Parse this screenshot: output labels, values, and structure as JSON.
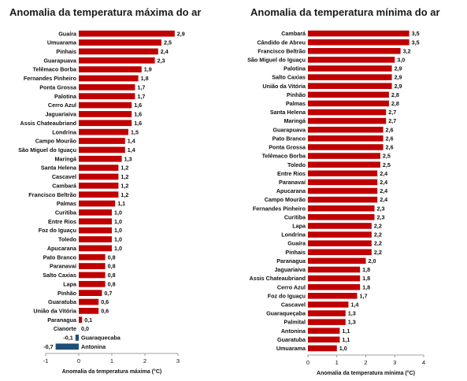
{
  "colors": {
    "positive": "#c00000",
    "negative": "#1f4e79",
    "axis": "#808080"
  },
  "chart_data": [
    {
      "type": "bar",
      "orientation": "horizontal",
      "title": "Anomalia da temperatura máxima do ar",
      "xlabel": "Anomalia da temperatura máxima (°C)",
      "xlim": [
        -1,
        3
      ],
      "xticks": [
        "-1",
        "0",
        "1",
        "2",
        "3"
      ],
      "categories": [
        "Guaíra",
        "Umuarama",
        "Pinhais",
        "Guarapuava",
        "Telêmaco Borba",
        "Fernandes Pinheiro",
        "Ponta Grossa",
        "Palotina",
        "Cerro  Azul",
        "Jaguariaiva",
        "Assis  Chateaubriand",
        "Londrina",
        "Campo Mourão",
        "São Miguel do Iguaçu",
        "Maringá",
        "Santa Helena",
        "Cascavel",
        "Cambará",
        "Francisco  Beltrão",
        "Palmas",
        "Curitiba",
        "Entre Rios",
        "Foz do Iguaçu",
        "Toledo",
        "Apucarana",
        "Pato Branco",
        "Paranavaí",
        "Salto Caxias",
        "Lapa",
        "Pinhão",
        "Guaratuba",
        "União da Vitória",
        "Paranagua",
        "Cianorte",
        "Guaraquecaba",
        "Antonina"
      ],
      "values": [
        2.9,
        2.5,
        2.4,
        2.3,
        1.9,
        1.8,
        1.7,
        1.7,
        1.6,
        1.6,
        1.6,
        1.5,
        1.4,
        1.4,
        1.3,
        1.2,
        1.2,
        1.2,
        1.2,
        1.1,
        1.0,
        1.0,
        1.0,
        1.0,
        1.0,
        0.8,
        0.8,
        0.8,
        0.8,
        0.7,
        0.6,
        0.6,
        0.1,
        0.0,
        -0.1,
        -0.7
      ],
      "value_labels": [
        "2,9",
        "2,5",
        "2,4",
        "2,3",
        "1,9",
        "1,8",
        "1,7",
        "1,7",
        "1,6",
        "1,6",
        "1,6",
        "1,5",
        "1,4",
        "1,4",
        "1,3",
        "1,2",
        "1,2",
        "1,2",
        "1,2",
        "1,1",
        "1,0",
        "1,0",
        "1,0",
        "1,0",
        "1,0",
        "0,8",
        "0,8",
        "0,8",
        "0,8",
        "0,7",
        "0,6",
        "0,6",
        "0,1",
        "0,0",
        "-0,1",
        "-0,7"
      ]
    },
    {
      "type": "bar",
      "orientation": "horizontal",
      "title": "Anomalia da temperatura mínima do ar",
      "xlabel": "Anomalia da temperatura mínima (°C)",
      "xlim": [
        0,
        4
      ],
      "xticks": [
        "0",
        "1",
        "2",
        "3",
        "4"
      ],
      "categories": [
        "Cambará",
        "Cândido de Abreu",
        "Francisco    Beltrão",
        "São Miguel do Iguaçu",
        "Palotina",
        "Salto Caxias",
        "União da Vitória",
        "Pinhão",
        "Palmas",
        "Santa Helena",
        "Maringá",
        "Guarapuava",
        "Pato Branco",
        "Ponta Grossa",
        "Telêmaco Borba",
        "Toledo",
        "Entre Rios",
        "Paranavaí",
        "Apucarana",
        "Campo Mourão",
        "Fernandes  Pinheiro",
        "Curitiba",
        "Lapa",
        "Londrina",
        "Guaíra",
        "Pinhais",
        "Paranagua",
        "Jaguariaiva",
        "Assis  Chateaubriand",
        "Cerro Azul",
        "Foz do Iguaçu",
        "Cascavel",
        "Guaraqueçaba",
        "Palmital",
        "Antonina",
        "Guaratuba",
        "Umuarama"
      ],
      "values": [
        3.5,
        3.5,
        3.2,
        3.0,
        2.9,
        2.9,
        2.9,
        2.8,
        2.8,
        2.7,
        2.7,
        2.6,
        2.6,
        2.6,
        2.5,
        2.5,
        2.4,
        2.4,
        2.4,
        2.4,
        2.3,
        2.3,
        2.2,
        2.2,
        2.2,
        2.2,
        2.0,
        1.8,
        1.8,
        1.8,
        1.7,
        1.4,
        1.3,
        1.3,
        1.1,
        1.1,
        1.0
      ],
      "value_labels": [
        "3,5",
        "3,5",
        "3,2",
        "3,0",
        "2,9",
        "2,9",
        "2,9",
        "2,8",
        "2,8",
        "2,7",
        "2,7",
        "2,6",
        "2,6",
        "2,6",
        "2,5",
        "2,5",
        "2,4",
        "2,4",
        "2,4",
        "2,4",
        "2,3",
        "2,3",
        "2,2",
        "2,2",
        "2,2",
        "2,2",
        "2,0",
        "1,8",
        "1,8",
        "1,8",
        "1,7",
        "1,4",
        "1,3",
        "1,3",
        "1,1",
        "1,1",
        "1,0"
      ]
    }
  ]
}
